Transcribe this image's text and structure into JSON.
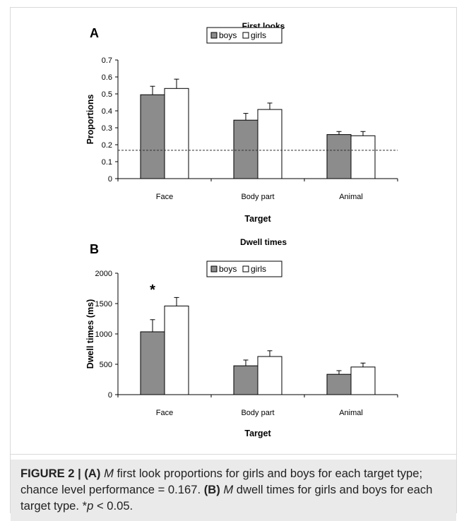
{
  "chart_data": [
    {
      "type": "bar",
      "panel_label": "A",
      "title": "First looks",
      "xlabel": "Target",
      "ylabel": "Proportions",
      "categories": [
        "Face",
        "Body part",
        "Animal"
      ],
      "series": [
        {
          "name": "boys",
          "values": [
            0.495,
            0.345,
            0.26
          ],
          "errors": [
            0.05,
            0.04,
            0.018
          ],
          "color": "#8c8c8c"
        },
        {
          "name": "girls",
          "values": [
            0.532,
            0.408,
            0.253
          ],
          "errors": [
            0.055,
            0.038,
            0.025
          ],
          "color": "#ffffff"
        }
      ],
      "ylim": [
        0,
        0.7
      ],
      "yticks": [
        "0",
        "0.1",
        "0.2",
        "0.3",
        "0.4",
        "0.5",
        "0.6",
        "0.7"
      ],
      "reference_line": 0.167,
      "legend_position": "top-center",
      "annotations": []
    },
    {
      "type": "bar",
      "panel_label": "B",
      "title": "Dwell times",
      "xlabel": "Target",
      "ylabel": "Dwell times (ms)",
      "categories": [
        "Face",
        "Body part",
        "Animal"
      ],
      "series": [
        {
          "name": "boys",
          "values": [
            1035,
            475,
            335
          ],
          "errors": [
            200,
            95,
            60
          ],
          "color": "#8c8c8c"
        },
        {
          "name": "girls",
          "values": [
            1460,
            628,
            455
          ],
          "errors": [
            140,
            95,
            65
          ],
          "color": "#ffffff"
        }
      ],
      "ylim": [
        0,
        2000
      ],
      "yticks": [
        "0",
        "500",
        "1000",
        "1500",
        "2000"
      ],
      "legend_position": "top-center",
      "annotations": [
        {
          "text": "*",
          "category": "Face"
        }
      ]
    }
  ],
  "caption": {
    "figure_label": "FIGURE 2 |",
    "a_label": "(A)",
    "m1": "M",
    "a_text": " first look proportions for girls and boys for each target type; chance level performance = 0.167.",
    "b_label": "(B)",
    "m2": "M",
    "b_text": " dwell times for girls and boys for each target type. ",
    "p_star": "*",
    "p_var": "p",
    "p_text": " < 0.05."
  }
}
